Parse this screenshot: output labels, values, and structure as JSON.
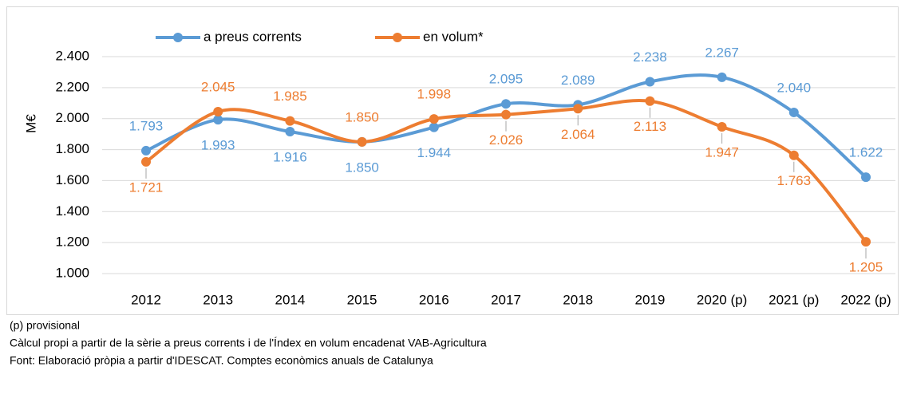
{
  "chart_data": {
    "type": "line",
    "y_label": "M€",
    "categories": [
      "2012",
      "2013",
      "2014",
      "2015",
      "2016",
      "2017",
      "2018",
      "2019",
      "2020 (p)",
      "2021 (p)",
      "2022 (p)"
    ],
    "series": [
      {
        "name": "a preus corrents",
        "color": "#5b9bd5",
        "values": [
          1793,
          1993,
          1916,
          1850,
          1944,
          2095,
          2089,
          2238,
          2267,
          2040,
          1622
        ],
        "value_labels": [
          "1.793",
          "1.993",
          "1.916",
          "1.850",
          "1.944",
          "2.095",
          "2.089",
          "2.238",
          "2.267",
          "2.040",
          "1.622"
        ]
      },
      {
        "name": "en volum*",
        "color": "#ed7d31",
        "values": [
          1721,
          2045,
          1985,
          1850,
          1998,
          2026,
          2064,
          2113,
          1947,
          1763,
          1205
        ],
        "value_labels": [
          "1.721",
          "2.045",
          "1.985",
          "1.850",
          "1.998",
          "2.026",
          "2.064",
          "2.113",
          "1.947",
          "1.763",
          "1.205"
        ]
      }
    ],
    "ylim": [
      1000,
      2400
    ],
    "yticks": [
      {
        "value": 1000,
        "label": "1.000"
      },
      {
        "value": 1200,
        "label": "1.200"
      },
      {
        "value": 1400,
        "label": "1.400"
      },
      {
        "value": 1600,
        "label": "1.600"
      },
      {
        "value": 1800,
        "label": "1.800"
      },
      {
        "value": 2000,
        "label": "2.000"
      },
      {
        "value": 2200,
        "label": "2.200"
      },
      {
        "value": 2400,
        "label": "2.400"
      }
    ],
    "grid": true,
    "legend": "top",
    "notes": [
      "(p) provisional",
      "Càlcul propi a partir de la sèrie a preus corrents i de l'Índex en volum encadenat VAB-Agricultura",
      "Font: Elaboració pròpia a partir d'IDESCAT. Comptes econòmics anuals de Catalunya"
    ]
  }
}
